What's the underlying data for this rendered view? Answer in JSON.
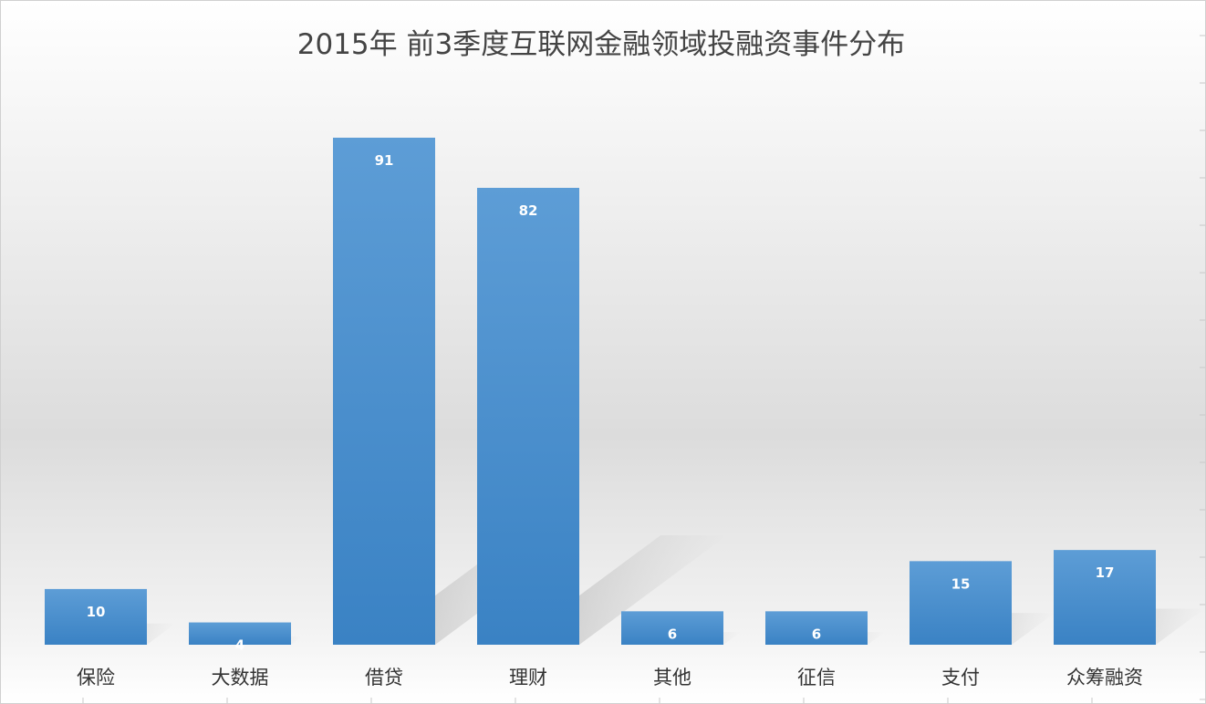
{
  "chart_data": {
    "type": "bar",
    "title": "2015年 前3季度互联网金融领域投融资事件分布",
    "categories": [
      "保险",
      "大数据",
      "借贷",
      "理财",
      "其他",
      "征信",
      "支付",
      "众筹融资"
    ],
    "values": [
      10,
      4,
      91,
      82,
      6,
      6,
      15,
      17
    ],
    "xlabel": "",
    "ylabel": "",
    "ylim": [
      0,
      91
    ],
    "grid": false,
    "legend": "none",
    "data_labels": true,
    "bar_color": "#3d86c8",
    "bar_color_light": "#5d9dd6",
    "label_color": "#ffffff"
  }
}
